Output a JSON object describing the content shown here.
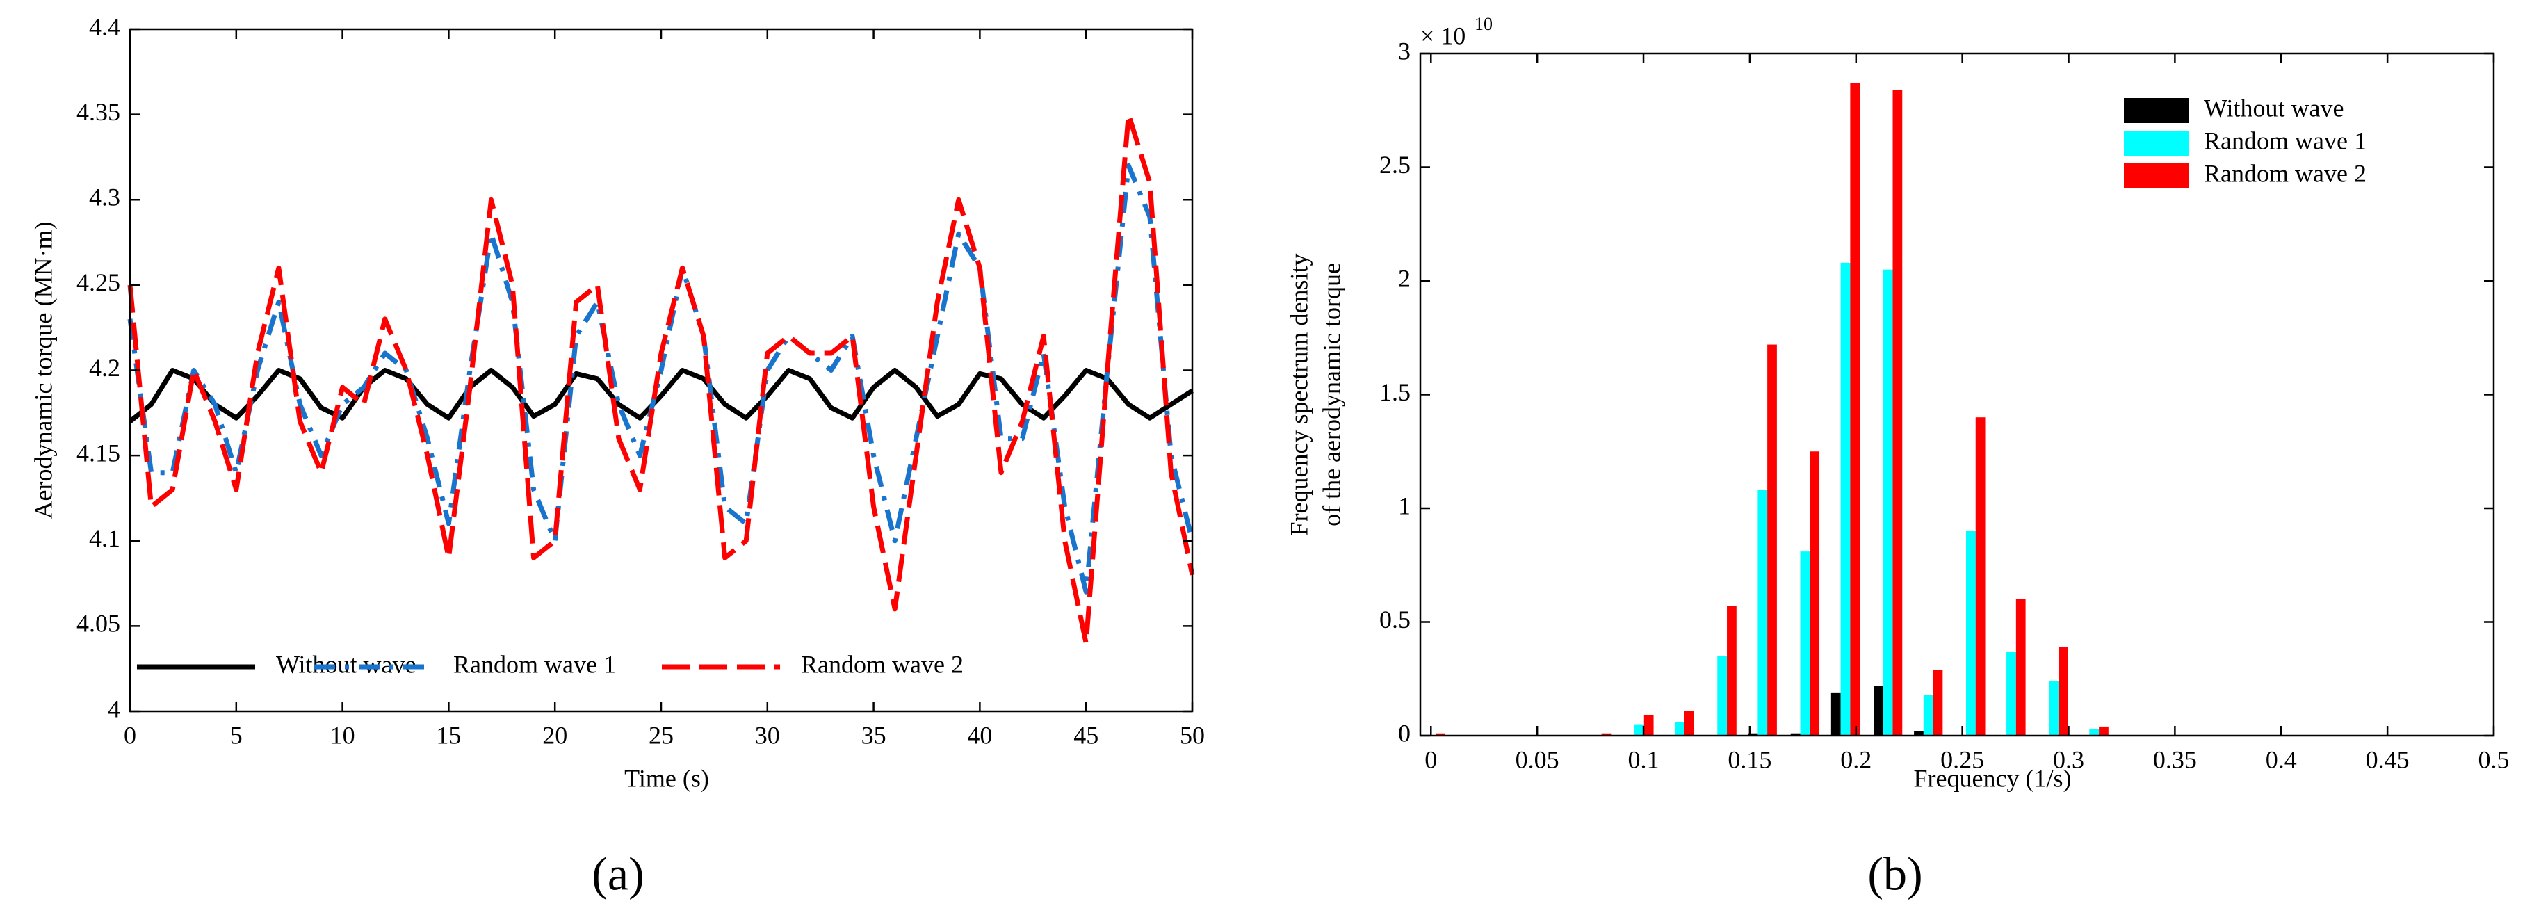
{
  "charts": [
    {
      "chart_data": {
        "type": "line",
        "caption": "(a)",
        "x_label": "Time (s)",
        "y_label": "Aerodynamic torque (MN·m)",
        "xlim": [
          0,
          50
        ],
        "xticks": [
          0,
          5,
          10,
          15,
          20,
          25,
          30,
          35,
          40,
          45,
          50
        ],
        "ylim": [
          4,
          4.4
        ],
        "yticks": [
          4,
          4.05,
          4.1,
          4.15,
          4.2,
          4.25,
          4.3,
          4.35,
          4.4
        ],
        "legend": "bottom",
        "x": [
          0,
          1,
          2,
          3,
          4,
          5,
          6,
          7,
          8,
          9,
          10,
          11,
          12,
          13,
          14,
          15,
          16,
          17,
          18,
          19,
          20,
          21,
          22,
          23,
          24,
          25,
          26,
          27,
          28,
          29,
          30,
          31,
          32,
          33,
          34,
          35,
          36,
          37,
          38,
          39,
          40,
          41,
          42,
          43,
          44,
          45,
          46,
          47,
          48,
          49,
          50
        ],
        "series": [
          {
            "name": "Without wave",
            "color": "#000000",
            "dash": "solid",
            "values": [
              4.17,
              4.18,
              4.2,
              4.195,
              4.18,
              4.172,
              4.185,
              4.2,
              4.195,
              4.178,
              4.172,
              4.19,
              4.2,
              4.195,
              4.18,
              4.172,
              4.19,
              4.2,
              4.19,
              4.173,
              4.18,
              4.198,
              4.195,
              4.18,
              4.172,
              4.185,
              4.2,
              4.195,
              4.18,
              4.172,
              4.185,
              4.2,
              4.195,
              4.178,
              4.172,
              4.19,
              4.2,
              4.19,
              4.173,
              4.18,
              4.198,
              4.195,
              4.18,
              4.172,
              4.185,
              4.2,
              4.195,
              4.18,
              4.172,
              4.18,
              4.188
            ]
          },
          {
            "name": "Random wave 1",
            "color": "#1874cd",
            "dash": "dashdot",
            "values": [
              4.23,
              4.14,
              4.14,
              4.2,
              4.18,
              4.14,
              4.2,
              4.24,
              4.18,
              4.15,
              4.18,
              4.19,
              4.21,
              4.2,
              4.16,
              4.11,
              4.2,
              4.28,
              4.24,
              4.13,
              4.1,
              4.22,
              4.24,
              4.18,
              4.15,
              4.2,
              4.26,
              4.22,
              4.12,
              4.11,
              4.2,
              4.22,
              4.21,
              4.2,
              4.22,
              4.15,
              4.1,
              4.16,
              4.22,
              4.28,
              4.26,
              4.16,
              4.16,
              4.21,
              4.12,
              4.07,
              4.2,
              4.32,
              4.29,
              4.15,
              4.1
            ]
          },
          {
            "name": "Random wave 2",
            "color": "#ff0000",
            "dash": "dashed",
            "values": [
              4.25,
              4.12,
              4.13,
              4.2,
              4.17,
              4.13,
              4.21,
              4.26,
              4.17,
              4.14,
              4.19,
              4.18,
              4.23,
              4.2,
              4.15,
              4.09,
              4.19,
              4.3,
              4.25,
              4.09,
              4.1,
              4.24,
              4.25,
              4.16,
              4.13,
              4.21,
              4.26,
              4.22,
              4.09,
              4.1,
              4.21,
              4.22,
              4.21,
              4.21,
              4.22,
              4.12,
              4.06,
              4.15,
              4.24,
              4.3,
              4.26,
              4.14,
              4.17,
              4.22,
              4.1,
              4.04,
              4.2,
              4.35,
              4.31,
              4.14,
              4.08
            ]
          }
        ]
      }
    },
    {
      "chart_data": {
        "type": "bar",
        "caption": "(b)",
        "x_label": "Frequency (1/s)",
        "y_label": [
          "Frequency spectrum density",
          "of the aerodynamic torque"
        ],
        "y_multiplier": {
          "base": "× 10",
          "exponent": "10"
        },
        "xlim": [
          -0.005,
          0.5
        ],
        "xticks": [
          0,
          0.05,
          0.1,
          0.15,
          0.2,
          0.25,
          0.3,
          0.35,
          0.4,
          0.45,
          0.5
        ],
        "ylim": [
          0,
          3
        ],
        "yticks": [
          0,
          0.5,
          1,
          1.5,
          2,
          2.5,
          3
        ],
        "legend": "upper right",
        "x": [
          0,
          0.078,
          0.098,
          0.117,
          0.137,
          0.156,
          0.176,
          0.195,
          0.215,
          0.234,
          0.254,
          0.273,
          0.293,
          0.312
        ],
        "series": [
          {
            "name": "Without wave",
            "color": "#000000",
            "values": [
              0,
              0,
              0,
              0,
              0,
              0.01,
              0.01,
              0.19,
              0.22,
              0.02,
              0,
              0,
              0,
              0
            ]
          },
          {
            "name": "Random wave 1",
            "color": "#00ffff",
            "values": [
              0,
              0,
              0.05,
              0.06,
              0.35,
              1.08,
              0.81,
              2.08,
              2.05,
              0.18,
              0.9,
              0.37,
              0.24,
              0.03
            ]
          },
          {
            "name": "Random wave 2",
            "color": "#ff0000",
            "values": [
              0.01,
              0.01,
              0.09,
              0.11,
              0.57,
              1.72,
              1.25,
              2.87,
              2.84,
              0.29,
              1.4,
              0.6,
              0.39,
              0.04
            ]
          }
        ]
      }
    }
  ]
}
